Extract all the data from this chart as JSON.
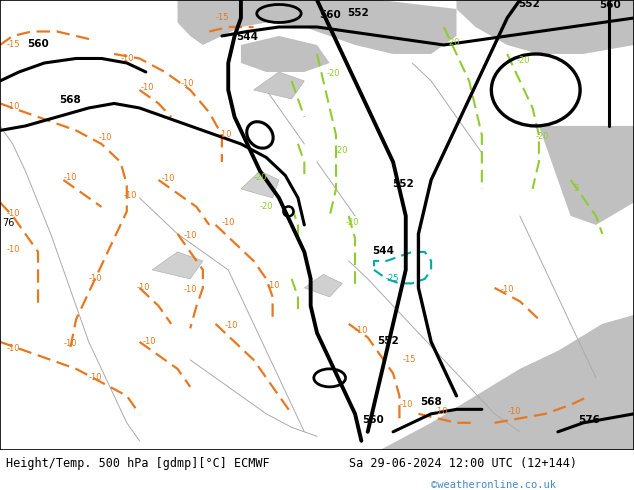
{
  "title_left": "Height/Temp. 500 hPa [gdmp][°C] ECMWF",
  "title_right": "Sa 29-06-2024 12:00 UTC (12+144)",
  "watermark": "©weatheronline.co.uk",
  "bg_color": "#b8e8a0",
  "water_color": "#c8c8c8",
  "land_color": "#b8e8a0",
  "border_color": "#999999",
  "title_fontsize": 9,
  "watermark_color": "#4488cc",
  "fig_width": 6.34,
  "fig_height": 4.9,
  "dpi": 100
}
